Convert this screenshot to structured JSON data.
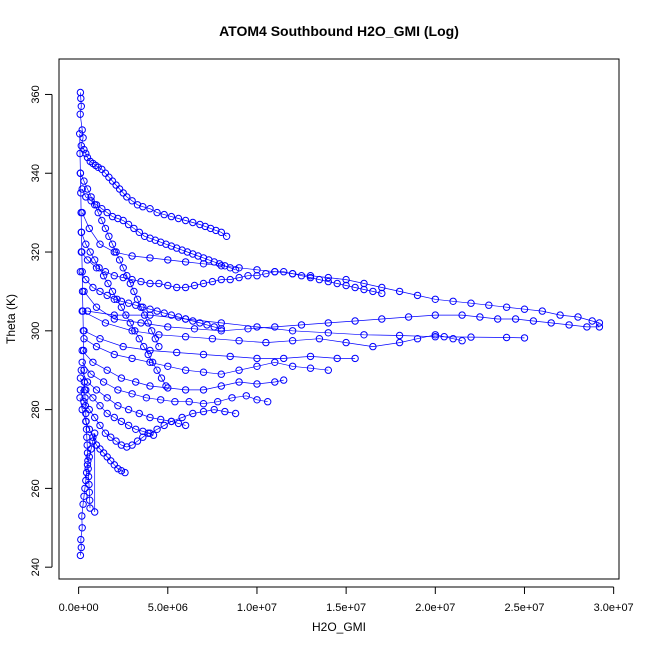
{
  "chart_data": {
    "type": "scatter",
    "title": "ATOM4 Southbound H2O_GMI (Log)",
    "xlabel": "H2O_GMI",
    "ylabel": "Theta (K)",
    "xlim": [
      -1100000,
      30300000
    ],
    "ylim": [
      237,
      369
    ],
    "xticks": [
      0,
      5000000,
      10000000,
      15000000,
      20000000,
      25000000,
      30000000
    ],
    "xtick_labels": [
      "0.0e+00",
      "5.0e+06",
      "1.0e+07",
      "1.5e+07",
      "2.0e+07",
      "2.5e+07",
      "3.0e+07"
    ],
    "yticks": [
      240,
      260,
      280,
      300,
      320,
      340,
      360
    ],
    "ytick_labels": [
      "240",
      "260",
      "280",
      "300",
      "320",
      "340",
      "360"
    ],
    "marker": "open-circle",
    "color": "#0000ff",
    "grid": false,
    "series": [
      {
        "x": [
          100000,
          120000,
          150000,
          90000,
          200000,
          250000,
          150000,
          300000,
          400000,
          500000,
          650000,
          800000,
          950000,
          1100000,
          1300000,
          1500000,
          1700000,
          1900000,
          2100000,
          2300000,
          2500000,
          2700000,
          3000000,
          3300000,
          3600000,
          4000000,
          4400000,
          4800000,
          5200000,
          5600000,
          6000000,
          6400000,
          6800000,
          7100000,
          7400000,
          7700000,
          8000000,
          8300000
        ],
        "y": [
          360.5,
          359,
          357,
          355,
          351,
          349,
          347,
          346,
          345,
          344,
          343,
          342.5,
          342,
          341.5,
          341,
          340,
          339,
          338,
          337,
          336,
          335,
          334,
          333,
          332,
          331.5,
          331,
          330,
          329.5,
          329,
          328.5,
          328,
          327.5,
          327,
          326.5,
          326,
          325.5,
          325,
          324
        ]
      },
      {
        "x": [
          200000,
          600000,
          1200000,
          2000000,
          3000000,
          4000000,
          5000000,
          6000000,
          7000000,
          8000000,
          9000000,
          10000000,
          11000000,
          12000000,
          13000000,
          14000000,
          15000000,
          16000000,
          17000000,
          18000000,
          19000000,
          20000000,
          21000000,
          22000000,
          23000000,
          24000000,
          25000000,
          26000000,
          27000000,
          28000000,
          28800000,
          29200000
        ],
        "y": [
          330,
          326,
          322,
          320,
          319,
          318.5,
          318,
          317.5,
          317,
          316.5,
          316,
          315.5,
          315,
          314.5,
          314,
          313.5,
          313,
          312,
          311,
          310,
          309,
          308,
          307.5,
          307,
          306.5,
          306,
          305.5,
          305,
          304,
          303.5,
          302.5,
          302
        ]
      },
      {
        "x": [
          300000,
          1000000,
          2000000,
          3500000,
          5000000,
          6500000,
          8000000,
          9500000,
          11000000,
          12500000,
          14000000,
          15500000,
          17000000,
          18500000,
          20000000,
          21500000,
          22500000,
          23500000,
          24500000,
          25500000,
          26500000,
          27500000,
          28500000,
          29200000
        ],
        "y": [
          310,
          306,
          303,
          302,
          301,
          300.5,
          300,
          300.5,
          301,
          301.5,
          302,
          302.5,
          303,
          303.5,
          304,
          304,
          303.5,
          303,
          303,
          302.5,
          302,
          301.5,
          301,
          301
        ]
      },
      {
        "x": [
          200000,
          1500000,
          3000000,
          4500000,
          6000000,
          7500000,
          9000000,
          10500000,
          12000000,
          13500000,
          15000000,
          16500000,
          18000000,
          19000000,
          20000000,
          20500000,
          21000000,
          21500000
        ],
        "y": [
          305,
          302,
          300,
          299,
          298.5,
          298,
          297.5,
          297,
          297.5,
          298,
          297,
          296,
          297,
          298,
          299,
          298.5,
          298,
          297.5
        ]
      },
      {
        "x": [
          500000,
          2000000,
          4000000,
          6000000,
          8000000,
          10000000,
          12000000,
          14000000,
          16000000,
          18000000,
          20000000,
          22000000,
          24000000,
          25000000
        ],
        "y": [
          305,
          304,
          304,
          303,
          302,
          301,
          300,
          299.5,
          299,
          298.8,
          298.5,
          298.4,
          298.3,
          298.2
        ]
      },
      {
        "x": [
          300000,
          1200000,
          2500000,
          4000000,
          5500000,
          7000000,
          8500000,
          10000000,
          11500000,
          13000000,
          14500000,
          15500000
        ],
        "y": [
          300,
          298,
          296,
          295,
          294.5,
          294,
          293.5,
          293,
          293,
          293.5,
          293,
          293
        ]
      },
      {
        "x": [
          300000,
          1000000,
          2000000,
          3000000,
          4000000,
          5000000,
          6000000,
          7000000,
          8000000,
          9000000,
          10000000,
          11000000,
          12000000,
          13000000,
          14000000
        ],
        "y": [
          298,
          296,
          294,
          293,
          292,
          291,
          290,
          289.5,
          289,
          290,
          291,
          292,
          291,
          290.5,
          290
        ]
      },
      {
        "x": [
          200000,
          800000,
          1600000,
          2400000,
          3200000,
          4000000,
          5000000,
          6000000,
          7000000,
          8000000,
          9000000,
          10000000,
          11000000,
          11500000
        ],
        "y": [
          295,
          292,
          290,
          288,
          287,
          286,
          285.5,
          285,
          285,
          286,
          287,
          286.5,
          287,
          287.5
        ]
      },
      {
        "x": [
          200000,
          700000,
          1400000,
          2200000,
          3000000,
          3800000,
          4600000,
          5400000,
          6200000,
          7000000,
          7800000,
          8600000,
          9400000,
          10000000,
          10600000
        ],
        "y": [
          292,
          289,
          287,
          285,
          284,
          283,
          282.5,
          282,
          282,
          281.5,
          282,
          283,
          283.5,
          282.5,
          282
        ]
      },
      {
        "x": [
          150000,
          500000,
          1000000,
          1600000,
          2200000,
          2800000,
          3400000,
          4000000,
          4600000,
          5200000,
          5800000,
          6400000,
          7000000,
          7600000,
          8200000,
          8800000
        ],
        "y": [
          290,
          287,
          285,
          283,
          281,
          280,
          279,
          278,
          277.5,
          277,
          278,
          279,
          279.5,
          280,
          279.5,
          279
        ]
      },
      {
        "x": [
          100000,
          400000,
          800000,
          1200000,
          1600000,
          2000000,
          2400000,
          2800000,
          3200000,
          3600000,
          4000000,
          4400000,
          4800000,
          5200000,
          5600000,
          6000000
        ],
        "y": [
          288,
          285,
          283,
          281,
          279,
          278,
          277,
          276,
          275,
          274.5,
          274,
          275,
          276,
          277,
          276.5,
          276
        ]
      },
      {
        "x": [
          100000,
          300000,
          600000,
          900000,
          1200000,
          1500000,
          1800000,
          2100000,
          2400000,
          2700000,
          3000000,
          3300000,
          3600000,
          3900000,
          4200000
        ],
        "y": [
          285,
          282,
          280,
          278,
          276,
          274,
          273,
          272,
          271,
          270.5,
          271,
          272,
          273,
          274,
          273.5
        ]
      },
      {
        "x": [
          80000,
          200000,
          400000,
          600000,
          800000,
          1000000,
          1200000,
          1400000,
          1600000,
          1800000,
          2000000,
          2200000,
          2400000,
          2600000
        ],
        "y": [
          283,
          280,
          277,
          275,
          273,
          271,
          270,
          269,
          268,
          267,
          266,
          265,
          264.5,
          264
        ]
      },
      {
        "x": [
          100000,
          150000,
          120000,
          200000,
          180000,
          250000,
          300000,
          350000,
          400000,
          450000,
          500000,
          600000,
          700000,
          800000,
          900000,
          900000
        ],
        "y": [
          243,
          245,
          247,
          250,
          253,
          256,
          258,
          260,
          262,
          264,
          266,
          268,
          270,
          272,
          274,
          254
        ]
      },
      {
        "x": [
          200000,
          400000,
          700000,
          1000000,
          1300000,
          1600000,
          1900000,
          2200000,
          2500000,
          2800000,
          3100000,
          3400000,
          3700000,
          4000000,
          4300000,
          4600000,
          4900000,
          5200000,
          5500000,
          5800000,
          6100000,
          6400000,
          6700000,
          7000000,
          7300000,
          7600000,
          7900000,
          8200000,
          8500000,
          8800000
        ],
        "y": [
          336,
          334,
          333,
          332,
          331,
          330,
          329,
          328.5,
          328,
          327,
          326,
          325,
          324,
          323.5,
          323,
          322.5,
          322,
          321.5,
          321,
          320.5,
          320,
          319.5,
          319,
          318.5,
          318,
          317.5,
          317,
          316.5,
          316,
          315.5
        ]
      },
      {
        "x": [
          150000,
          500000,
          1000000,
          1500000,
          2000000,
          2500000,
          3000000,
          3500000,
          4000000,
          4500000,
          5000000,
          5500000,
          6000000,
          6500000,
          7000000,
          7500000,
          8000000,
          8500000,
          9000000,
          9500000,
          10000000,
          10500000,
          11000000,
          11500000,
          12000000,
          12500000,
          13000000,
          13500000,
          14000000,
          14500000,
          15000000,
          15500000,
          16000000,
          16500000,
          17000000
        ],
        "y": [
          320,
          318,
          316,
          315,
          314,
          313.5,
          313,
          312.5,
          312,
          312,
          311.5,
          311,
          311,
          311.5,
          312,
          312.5,
          313,
          313,
          313.5,
          314,
          314,
          314.5,
          315,
          315,
          314.5,
          314,
          313.5,
          313,
          312.5,
          312,
          311.5,
          311,
          310.5,
          310,
          309.5
        ]
      },
      {
        "x": [
          100000,
          400000,
          800000,
          1200000,
          1600000,
          2000000,
          2400000,
          2800000,
          3200000,
          3600000,
          4000000,
          4400000,
          4800000,
          5200000,
          5600000,
          6000000,
          6400000,
          6800000,
          7200000,
          7600000,
          8000000
        ],
        "y": [
          315,
          313,
          311,
          310,
          309,
          308,
          307.5,
          307,
          306.5,
          306,
          305.5,
          305,
          304.5,
          304,
          303.5,
          303,
          302.5,
          302,
          301.5,
          301,
          300.5
        ]
      },
      {
        "x": [
          60000,
          80000,
          100000,
          120000,
          140000,
          160000,
          180000,
          200000,
          220000,
          240000,
          260000,
          280000,
          300000,
          320000,
          340000,
          360000,
          380000,
          400000,
          420000,
          440000,
          460000,
          480000,
          500000,
          520000,
          540000,
          560000,
          580000,
          600000,
          620000,
          640000
        ],
        "y": [
          350,
          345,
          340,
          335,
          330,
          325,
          320,
          315,
          310,
          305,
          300,
          295,
          290,
          287,
          285,
          283,
          281,
          279,
          277,
          275,
          273,
          271,
          269,
          267,
          265,
          263,
          261,
          259,
          257,
          255
        ]
      },
      {
        "x": [
          100000,
          300000,
          500000,
          700000,
          900000,
          1100000,
          1300000,
          1500000,
          1700000,
          1900000,
          2100000,
          2300000,
          2500000,
          2700000,
          2900000,
          3100000,
          3300000,
          3500000,
          3700000,
          3900000,
          4100000,
          4300000,
          4500000
        ],
        "y": [
          340,
          338,
          336,
          334,
          332,
          330,
          328,
          326,
          324,
          322,
          320,
          318,
          316,
          314,
          312,
          310,
          308,
          306,
          304,
          302,
          300,
          298,
          296
        ]
      },
      {
        "x": [
          150000,
          400000,
          650000,
          900000,
          1150000,
          1400000,
          1650000,
          1900000,
          2150000,
          2400000,
          2650000,
          2900000,
          3150000,
          3400000,
          3650000,
          3900000,
          4150000,
          4400000,
          4650000,
          4900000
        ],
        "y": [
          325,
          322,
          320,
          318,
          316,
          314,
          312,
          310,
          308,
          306,
          304,
          302,
          300,
          298,
          296,
          294,
          292,
          290,
          288,
          286
        ]
      }
    ]
  }
}
